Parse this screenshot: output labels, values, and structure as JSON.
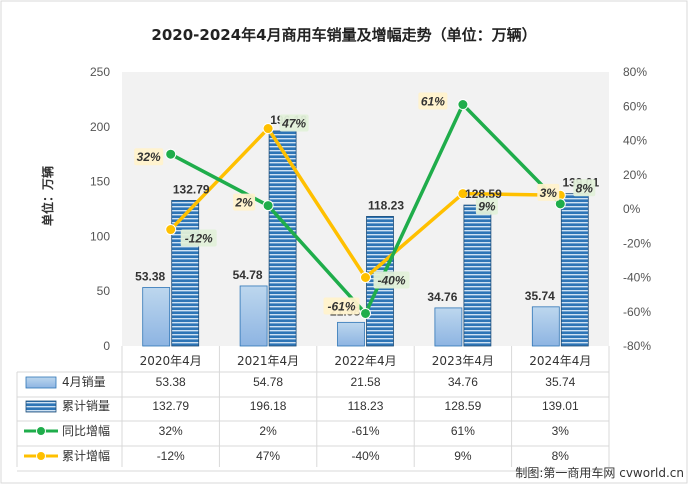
{
  "chart_data": {
    "type": "bar",
    "title": "2020-2024年4月商用车销量及增幅走势（单位：万辆）",
    "ylabel": "单位：万辆",
    "categories": [
      "2020年4月",
      "2021年4月",
      "2022年4月",
      "2023年4月",
      "2024年4月"
    ],
    "ylim": [
      0,
      250
    ],
    "yticks": [
      0,
      50,
      100,
      150,
      200,
      250
    ],
    "y2lim": [
      -80,
      80
    ],
    "y2ticks": [
      "80%",
      "60%",
      "40%",
      "20%",
      "0%",
      "-20%",
      "-40%",
      "-60%",
      "-80%"
    ],
    "y2tick_values": [
      80,
      60,
      40,
      20,
      0,
      -20,
      -40,
      -60,
      -80
    ],
    "grid": false,
    "legend": "table-below",
    "series": [
      {
        "name": "4月销量",
        "type": "bar",
        "values": [
          53.38,
          54.78,
          21.58,
          34.76,
          35.74
        ],
        "labels": [
          "53.38",
          "54.78",
          "21.58",
          "34.76",
          "35.74"
        ],
        "color": "#9dc3e6"
      },
      {
        "name": "累计销量",
        "type": "bar",
        "values": [
          132.79,
          196.18,
          118.23,
          128.59,
          139.01
        ],
        "labels": [
          "132.79",
          "196.18",
          "118.23",
          "128.59",
          "139.01"
        ],
        "color": "#2e75b6"
      },
      {
        "name": "同比增幅",
        "type": "line",
        "axis": "right",
        "values": [
          32,
          2,
          -61,
          61,
          3
        ],
        "labels": [
          "32%",
          "2%",
          "-61%",
          "61%",
          "3%"
        ],
        "color": "#1fad4b"
      },
      {
        "name": "累计增幅",
        "type": "line",
        "axis": "right",
        "values": [
          -12,
          47,
          -40,
          9,
          8
        ],
        "labels": [
          "-12%",
          "47%",
          "-40%",
          "9%",
          "8%"
        ],
        "color": "#ffc000"
      }
    ],
    "credit": "制图:第一商用车网 cvworld.cn"
  }
}
